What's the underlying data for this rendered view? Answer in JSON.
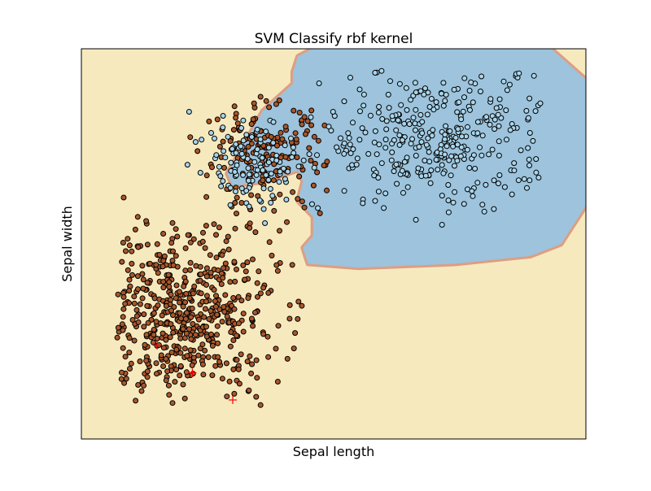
{
  "chart_data": {
    "type": "scatter",
    "title": "SVM Classify rbf kernel",
    "xlabel": "Sepal length",
    "ylabel": "Sepal width",
    "xlim": [
      0,
      10
    ],
    "ylim": [
      0,
      10
    ],
    "grid": false,
    "ticks": "none",
    "colors": {
      "background_region": "#f6e9be",
      "decision_region": "#9dc3dd",
      "boundary": "#dd9e82",
      "class_0_points": "#a9572b",
      "class_1_points": "#a8d5ea",
      "point_edge": "#000000",
      "markers": "#ff0000"
    },
    "decision_region_polygon": [
      [
        4.2,
        9.4
      ],
      [
        4.3,
        9.8
      ],
      [
        4.6,
        10
      ],
      [
        9.3,
        10
      ],
      [
        10,
        9.2
      ],
      [
        10,
        6.0
      ],
      [
        9.5,
        5.0
      ],
      [
        8.9,
        4.7
      ],
      [
        7.4,
        4.5
      ],
      [
        5.5,
        4.4
      ],
      [
        4.5,
        4.5
      ],
      [
        4.4,
        4.9
      ],
      [
        4.6,
        5.2
      ],
      [
        4.6,
        5.7
      ],
      [
        4.3,
        6.1
      ],
      [
        4.4,
        6.6
      ],
      [
        4.3,
        6.9
      ],
      [
        3.6,
        6.6
      ],
      [
        3.0,
        6.5
      ],
      [
        2.9,
        6.8
      ],
      [
        3.3,
        7.7
      ],
      [
        3.6,
        8.4
      ],
      [
        4.2,
        9.1
      ]
    ],
    "clusters": [
      {
        "name": "",
        "class": 0,
        "n": 540,
        "cx": 2.0,
        "cy": 3.2,
        "sx": 0.95,
        "sy": 1.1,
        "xmin": 0.7,
        "xmax": 4.4,
        "ymin": 0.8,
        "ymax": 6.3
      },
      {
        "name": "",
        "class": 0,
        "n": 170,
        "cx": 3.6,
        "cy": 7.2,
        "sx": 0.6,
        "sy": 0.7,
        "xmin": 2.0,
        "xmax": 4.9,
        "ymin": 5.5,
        "ymax": 9.0
      },
      {
        "name": "",
        "class": 1,
        "n": 120,
        "cx": 3.4,
        "cy": 7.1,
        "sx": 0.6,
        "sy": 0.6,
        "xmin": 2.1,
        "xmax": 4.7,
        "ymin": 5.3,
        "ymax": 8.6
      },
      {
        "name": "",
        "class": 1,
        "n": 330,
        "cx": 7.1,
        "cy": 7.7,
        "sx": 1.15,
        "sy": 0.9,
        "xmin": 4.5,
        "xmax": 9.1,
        "ymin": 5.4,
        "ymax": 9.5
      }
    ],
    "markers": [
      {
        "shape": "plus",
        "x": 1.5,
        "y": 2.4
      },
      {
        "shape": "plus",
        "x": 2.2,
        "y": 1.7
      },
      {
        "shape": "plus",
        "x": 3.0,
        "y": 1.0
      }
    ]
  }
}
